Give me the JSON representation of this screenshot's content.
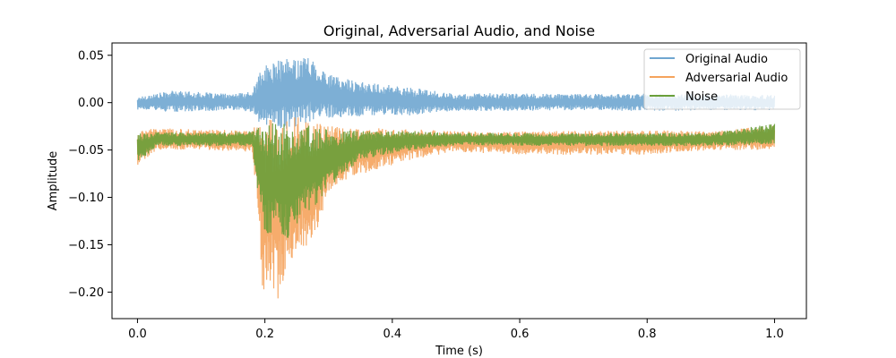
{
  "chart_data": {
    "type": "line",
    "title": "Original, Adversarial Audio, and Noise",
    "xlabel": "Time (s)",
    "ylabel": "Amplitude",
    "xlim": [
      -0.04,
      1.05
    ],
    "ylim": [
      -0.228,
      0.063
    ],
    "xticks": [
      0.0,
      0.2,
      0.4,
      0.6,
      0.8,
      1.0
    ],
    "xtick_labels": [
      "0.0",
      "0.2",
      "0.4",
      "0.6",
      "0.8",
      "1.0"
    ],
    "yticks": [
      0.05,
      0.0,
      -0.05,
      -0.1,
      -0.15,
      -0.2
    ],
    "ytick_labels": [
      "0.05",
      "0.00",
      "−0.05",
      "−0.10",
      "−0.15",
      "−0.20"
    ],
    "grid": false,
    "legend": "top-right",
    "series": [
      {
        "name": "Original Audio",
        "color": "#6fa6d0",
        "envelope": [
          {
            "t": 0.0,
            "lo": -0.008,
            "hi": 0.006
          },
          {
            "t": 0.03,
            "lo": -0.009,
            "hi": 0.01
          },
          {
            "t": 0.06,
            "lo": -0.01,
            "hi": 0.013
          },
          {
            "t": 0.1,
            "lo": -0.009,
            "hi": 0.011
          },
          {
            "t": 0.15,
            "lo": -0.008,
            "hi": 0.009
          },
          {
            "t": 0.18,
            "lo": -0.01,
            "hi": 0.012
          },
          {
            "t": 0.19,
            "lo": -0.02,
            "hi": 0.03
          },
          {
            "t": 0.2,
            "lo": -0.025,
            "hi": 0.039
          },
          {
            "t": 0.22,
            "lo": -0.028,
            "hi": 0.045
          },
          {
            "t": 0.25,
            "lo": -0.027,
            "hi": 0.048
          },
          {
            "t": 0.27,
            "lo": -0.02,
            "hi": 0.05
          },
          {
            "t": 0.3,
            "lo": -0.016,
            "hi": 0.03
          },
          {
            "t": 0.35,
            "lo": -0.015,
            "hi": 0.022
          },
          {
            "t": 0.38,
            "lo": -0.013,
            "hi": 0.02
          },
          {
            "t": 0.43,
            "lo": -0.014,
            "hi": 0.016
          },
          {
            "t": 0.47,
            "lo": -0.01,
            "hi": 0.012
          },
          {
            "t": 0.5,
            "lo": -0.009,
            "hi": 0.009
          },
          {
            "t": 0.55,
            "lo": -0.009,
            "hi": 0.01
          },
          {
            "t": 0.7,
            "lo": -0.008,
            "hi": 0.009
          },
          {
            "t": 0.8,
            "lo": -0.009,
            "hi": 0.01
          },
          {
            "t": 0.9,
            "lo": -0.008,
            "hi": 0.009
          },
          {
            "t": 1.0,
            "lo": -0.008,
            "hi": 0.008
          }
        ]
      },
      {
        "name": "Adversarial Audio",
        "color": "#f5a35c",
        "envelope": [
          {
            "t": 0.0,
            "lo": -0.066,
            "hi": -0.03
          },
          {
            "t": 0.03,
            "lo": -0.05,
            "hi": -0.027
          },
          {
            "t": 0.1,
            "lo": -0.05,
            "hi": -0.028
          },
          {
            "t": 0.18,
            "lo": -0.052,
            "hi": -0.03
          },
          {
            "t": 0.19,
            "lo": -0.12,
            "hi": -0.018
          },
          {
            "t": 0.195,
            "lo": -0.2,
            "hi": -0.016
          },
          {
            "t": 0.21,
            "lo": -0.19,
            "hi": -0.013
          },
          {
            "t": 0.217,
            "lo": -0.214,
            "hi": -0.013
          },
          {
            "t": 0.24,
            "lo": -0.17,
            "hi": -0.013
          },
          {
            "t": 0.26,
            "lo": -0.16,
            "hi": -0.015
          },
          {
            "t": 0.28,
            "lo": -0.14,
            "hi": -0.02
          },
          {
            "t": 0.3,
            "lo": -0.1,
            "hi": -0.024
          },
          {
            "t": 0.33,
            "lo": -0.08,
            "hi": -0.026
          },
          {
            "t": 0.38,
            "lo": -0.07,
            "hi": -0.027
          },
          {
            "t": 0.43,
            "lo": -0.06,
            "hi": -0.028
          },
          {
            "t": 0.5,
            "lo": -0.052,
            "hi": -0.03
          },
          {
            "t": 0.6,
            "lo": -0.055,
            "hi": -0.03
          },
          {
            "t": 0.8,
            "lo": -0.055,
            "hi": -0.029
          },
          {
            "t": 0.9,
            "lo": -0.05,
            "hi": -0.03
          },
          {
            "t": 1.0,
            "lo": -0.05,
            "hi": -0.024
          }
        ]
      },
      {
        "name": "Noise",
        "color": "#6a9f3a",
        "envelope": [
          {
            "t": 0.0,
            "lo": -0.064,
            "hi": -0.032
          },
          {
            "t": 0.03,
            "lo": -0.046,
            "hi": -0.031
          },
          {
            "t": 0.1,
            "lo": -0.046,
            "hi": -0.032
          },
          {
            "t": 0.18,
            "lo": -0.046,
            "hi": -0.03
          },
          {
            "t": 0.19,
            "lo": -0.1,
            "hi": -0.025
          },
          {
            "t": 0.2,
            "lo": -0.142,
            "hi": -0.022
          },
          {
            "t": 0.22,
            "lo": -0.14,
            "hi": -0.02
          },
          {
            "t": 0.23,
            "lo": -0.152,
            "hi": -0.02
          },
          {
            "t": 0.26,
            "lo": -0.12,
            "hi": -0.022
          },
          {
            "t": 0.28,
            "lo": -0.11,
            "hi": -0.026
          },
          {
            "t": 0.3,
            "lo": -0.09,
            "hi": -0.028
          },
          {
            "t": 0.35,
            "lo": -0.06,
            "hi": -0.03
          },
          {
            "t": 0.43,
            "lo": -0.05,
            "hi": -0.03
          },
          {
            "t": 0.5,
            "lo": -0.045,
            "hi": -0.032
          },
          {
            "t": 0.7,
            "lo": -0.046,
            "hi": -0.032
          },
          {
            "t": 0.9,
            "lo": -0.046,
            "hi": -0.032
          },
          {
            "t": 1.0,
            "lo": -0.044,
            "hi": -0.022
          }
        ]
      }
    ]
  }
}
